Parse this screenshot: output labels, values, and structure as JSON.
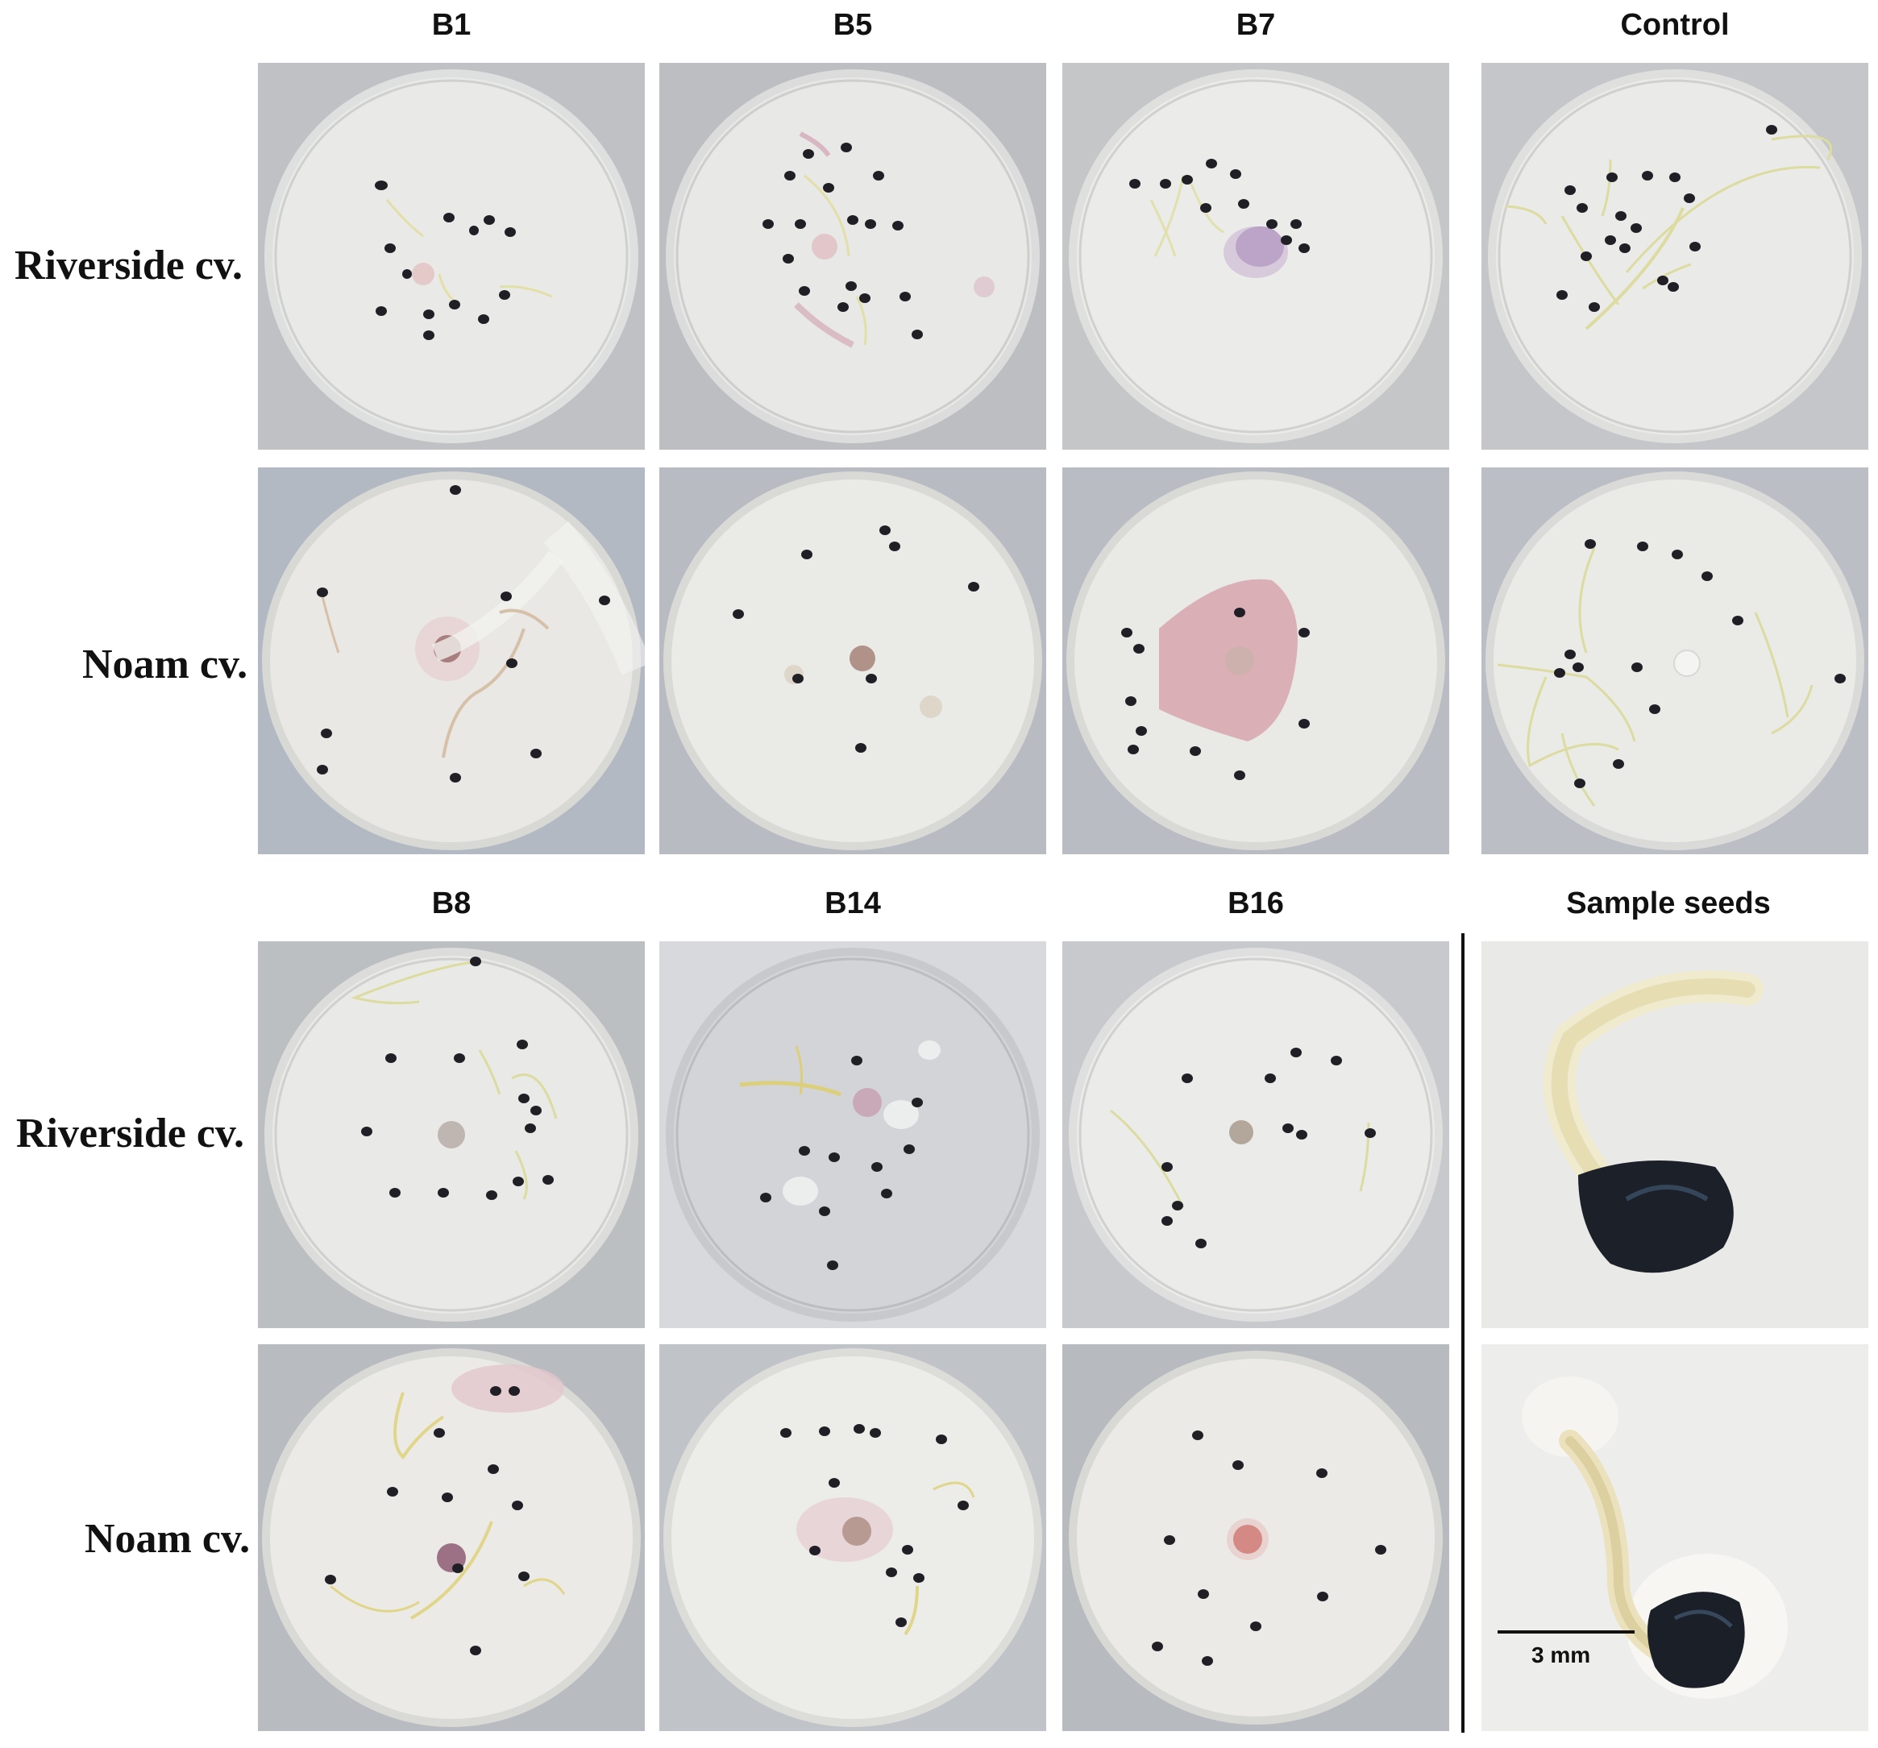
{
  "top_block": {
    "columns": [
      "B1",
      "B5",
      "B7",
      "Control"
    ],
    "rows": [
      "Riverside cv.",
      "Noam cv."
    ]
  },
  "bottom_block": {
    "columns": [
      "B8",
      "B14",
      "B16",
      "Sample seeds"
    ],
    "rows": [
      "Riverside cv.",
      "Noam cv."
    ]
  },
  "scale_bar": {
    "label": "3 mm"
  },
  "colors": {
    "dish_medium": "#ebeae5",
    "seed": "#1a1a1f",
    "sprout": "#d8d6a0",
    "pink_stain": "#d7a4ab",
    "purple_stain": "#a06e9e",
    "background_gray": "#b8bbc0"
  }
}
